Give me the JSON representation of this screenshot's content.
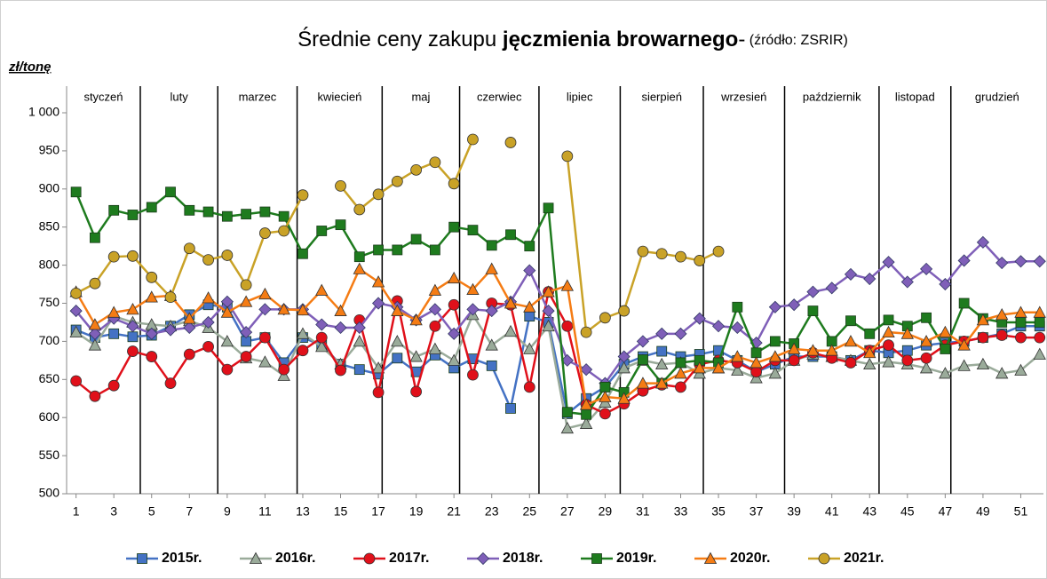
{
  "chart_data": {
    "type": "line",
    "title": "Średnie ceny zakupu ",
    "title_bold": "jęczmienia browarnego",
    "title_dash": "-",
    "title_source": " (źródło: ZSRIR)",
    "y_label": "zł/tonę",
    "months": [
      "styczeń",
      "luty",
      "marzec",
      "kwiecień",
      "maj",
      "czerwiec",
      "lipiec",
      "sierpień",
      "wrzesień",
      "październik",
      "listopad",
      "grudzień"
    ],
    "month_bounds": [
      4.4,
      8.5,
      12.7,
      17.2,
      21.3,
      25.5,
      29.8,
      34.2,
      38.5,
      43.5,
      47.3
    ],
    "x": [
      1,
      2,
      3,
      4,
      5,
      6,
      7,
      8,
      9,
      10,
      11,
      12,
      13,
      14,
      15,
      16,
      17,
      18,
      19,
      20,
      21,
      22,
      23,
      24,
      25,
      26,
      27,
      28,
      29,
      30,
      31,
      32,
      33,
      34,
      35,
      36,
      37,
      38,
      39,
      40,
      41,
      42,
      43,
      44,
      45,
      46,
      47,
      48,
      49,
      50,
      51,
      52
    ],
    "xlim": [
      0.5,
      52.2
    ],
    "xticks": [
      1,
      3,
      5,
      7,
      9,
      11,
      13,
      15,
      17,
      19,
      21,
      23,
      25,
      27,
      29,
      31,
      33,
      35,
      37,
      39,
      41,
      43,
      45,
      47,
      49,
      51
    ],
    "ylim": [
      500,
      1000
    ],
    "yticks": [
      500,
      550,
      600,
      650,
      700,
      750,
      800,
      850,
      900,
      950,
      {
        "value": 1000,
        "label": "1 000"
      }
    ],
    "series": [
      {
        "name": "2015r.",
        "color": "#4472c4",
        "marker": "square",
        "values": [
          715,
          705,
          710,
          706,
          708,
          720,
          735,
          748,
          745,
          700,
          705,
          672,
          705,
          695,
          670,
          663,
          657,
          678,
          660,
          682,
          665,
          677,
          668,
          612,
          733,
          725,
          605,
          625,
          640,
          670,
          680,
          687,
          680,
          683,
          688,
          675,
          660,
          670,
          680,
          680,
          680,
          675,
          688,
          685,
          688,
          695,
          698,
          700,
          705,
          710,
          720,
          720
        ]
      },
      {
        "name": "2016r.",
        "color": "#9aab9a",
        "marker": "triangle",
        "values": [
          712,
          695,
          733,
          725,
          722,
          720,
          727,
          718,
          700,
          678,
          673,
          655,
          710,
          693,
          670,
          700,
          665,
          700,
          680,
          690,
          675,
          735,
          695,
          713,
          690,
          720,
          586,
          592,
          620,
          665,
          675,
          670,
          672,
          658,
          665,
          662,
          652,
          658,
          675,
          683,
          680,
          675,
          670,
          673,
          670,
          665,
          658,
          668,
          670,
          658,
          662,
          683
        ]
      },
      {
        "name": "2017r.",
        "color": "#e0101a",
        "marker": "circle",
        "values": [
          648,
          628,
          642,
          687,
          680,
          645,
          683,
          693,
          663,
          680,
          705,
          663,
          688,
          705,
          662,
          728,
          633,
          753,
          634,
          720,
          748,
          656,
          750,
          748,
          640,
          765,
          720,
          617,
          605,
          618,
          635,
          643,
          640,
          670,
          675,
          672,
          660,
          675,
          675,
          685,
          678,
          672,
          688,
          695,
          675,
          678,
          695,
          700,
          705,
          708,
          705,
          705
        ]
      },
      {
        "name": "2018r.",
        "color": "#7f5fb8",
        "marker": "diamond",
        "values": [
          740,
          710,
          730,
          720,
          710,
          715,
          718,
          725,
          752,
          712,
          742,
          742,
          742,
          722,
          718,
          718,
          750,
          745,
          728,
          742,
          710,
          742,
          740,
          752,
          793,
          740,
          675,
          663,
          645,
          680,
          700,
          710,
          710,
          730,
          720,
          718,
          698,
          745,
          748,
          765,
          770,
          788,
          782,
          804,
          778,
          795,
          775,
          806,
          830,
          803,
          805,
          805
        ]
      },
      {
        "name": "2019r.",
        "color": "#1e7b1e",
        "marker": "square",
        "values": [
          896,
          836,
          872,
          866,
          876,
          896,
          872,
          870,
          864,
          867,
          870,
          864,
          815,
          845,
          853,
          811,
          820,
          820,
          834,
          820,
          850,
          846,
          826,
          840,
          825,
          875,
          607,
          604,
          640,
          633,
          676,
          645,
          672,
          675,
          672,
          745,
          685,
          700,
          697,
          740,
          700,
          727,
          710,
          728,
          720,
          731,
          690,
          750,
          730,
          725,
          725,
          725
        ]
      },
      {
        "name": "2020r.",
        "color": "#f57c14",
        "marker": "triangle",
        "values": [
          765,
          722,
          738,
          742,
          758,
          760,
          730,
          757,
          738,
          752,
          762,
          742,
          741,
          767,
          740,
          795,
          778,
          740,
          728,
          767,
          783,
          768,
          795,
          750,
          745,
          765,
          773,
          617,
          627,
          625,
          645,
          645,
          658,
          665,
          665,
          680,
          672,
          680,
          690,
          688,
          688,
          700,
          685,
          712,
          710,
          700,
          712,
          695,
          728,
          735,
          738,
          738
        ]
      },
      {
        "name": "2021r.",
        "color": "#c9a227",
        "marker": "circle",
        "values": [
          763,
          776,
          811,
          812,
          784,
          758,
          822,
          807,
          813,
          774,
          842,
          845,
          892,
          null,
          904,
          873,
          893,
          910,
          925,
          935,
          907,
          965,
          null,
          961,
          null,
          null,
          943,
          712,
          731,
          740,
          818,
          815,
          811,
          806,
          818,
          null,
          null,
          null,
          null,
          null,
          null,
          null,
          null,
          null,
          null,
          null,
          null,
          null,
          null,
          null,
          null,
          null
        ]
      }
    ]
  }
}
